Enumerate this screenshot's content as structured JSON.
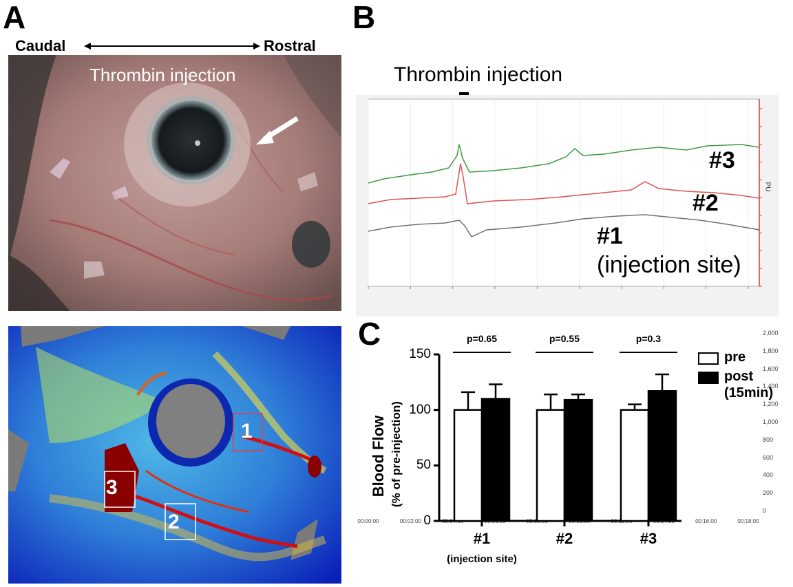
{
  "panels": {
    "a": "A",
    "b": "B",
    "c": "C"
  },
  "panel_a": {
    "caudal_label": "Caudal",
    "rostral_label": "Rostral",
    "photo_caption": "Thrombin injection",
    "roi_labels": [
      "1",
      "2",
      "3"
    ]
  },
  "panel_b": {
    "title": "Thrombin injection",
    "y_axis_label": "PU",
    "y_ticks": [
      "0",
      "200",
      "400",
      "600",
      "800",
      "1,000",
      "1,200",
      "1,400",
      "1,600",
      "1,800",
      "2,000"
    ],
    "x_ticks": [
      "00:00:00",
      "00:02:00",
      "00:04:00",
      "00:06:00",
      "00:08:00",
      "00:10:00",
      "00:12:00",
      "00:14:00",
      "00:16:00",
      "00:18:00"
    ],
    "trace_labels": {
      "t3": "#3",
      "t2": "#2",
      "t1": "#1",
      "t1_sub": "(injection site)"
    },
    "colors": {
      "t3": "#3c9a3c",
      "t2": "#e05050",
      "t1": "#707070",
      "axis_right": "#d04040"
    }
  },
  "chart_data": {
    "type": "bar",
    "title": "",
    "ylabel": "Blood Flow",
    "ylabel_sub": "(% of pre-injection)",
    "ylim": [
      0,
      150
    ],
    "yticks": [
      "0",
      "50",
      "100",
      "150"
    ],
    "categories": [
      "#1",
      "#2",
      "#3"
    ],
    "category_sub": [
      "(injection site)",
      "",
      ""
    ],
    "series": [
      {
        "name": "pre",
        "values": [
          100,
          100,
          100
        ],
        "errors": [
          16,
          14,
          5
        ],
        "color": "#ffffff"
      },
      {
        "name": "post",
        "name_sub": "(15min)",
        "values": [
          110,
          109,
          117
        ],
        "errors": [
          13,
          5,
          15
        ],
        "color": "#000000"
      }
    ],
    "pvalues": [
      "p=0.65",
      "p=0.55",
      "p=0.3"
    ]
  }
}
